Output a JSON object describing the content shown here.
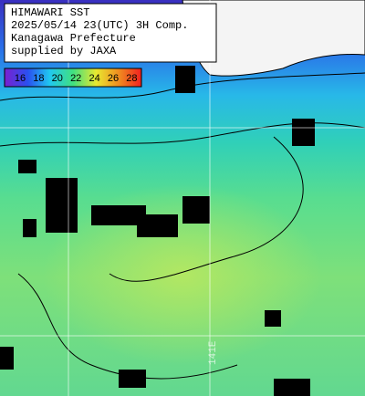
{
  "header": {
    "lines": [
      "HIMAWARI SST",
      "2025/05/14 23(UTC) 3H Comp.",
      "Kanagawa Prefecture",
      "supplied by JAXA"
    ]
  },
  "colorbar": {
    "labels": [
      "16",
      "18",
      "20",
      "22",
      "24",
      "26",
      "28"
    ]
  },
  "grid_labels": [
    "141E"
  ]
}
